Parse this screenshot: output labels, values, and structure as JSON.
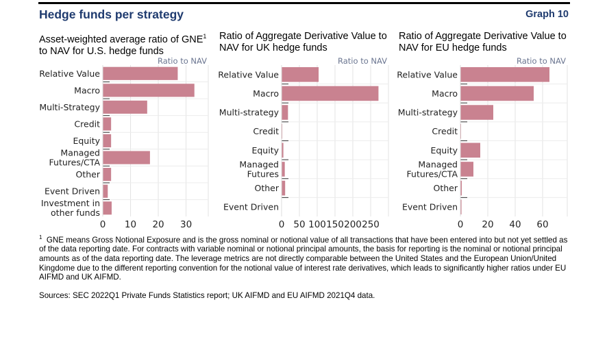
{
  "header": {
    "title": "Hedge funds per strategy",
    "graph_label": "Graph 10"
  },
  "chart_data": [
    {
      "type": "bar",
      "orientation": "horizontal",
      "title_parts": [
        "Asset-weighted average ratio of GNE",
        "1",
        " to NAV for U.S. hedge funds"
      ],
      "unit_label": "Ratio to NAV",
      "categories": [
        "Relative Value",
        "Macro",
        "Multi-Strategy",
        "Credit",
        "Equity",
        "Managed Futures/CTA",
        "Other",
        "Event Driven",
        "Investment in other funds"
      ],
      "category_lines": [
        [
          "Relative Value"
        ],
        [
          "Macro"
        ],
        [
          "Multi-Strategy"
        ],
        [
          "Credit"
        ],
        [
          "Equity"
        ],
        [
          "Managed",
          "Futures/CTA"
        ],
        [
          "Other"
        ],
        [
          "Event Driven"
        ],
        [
          "Investment in",
          "other funds"
        ]
      ],
      "values": [
        27,
        33,
        16,
        3,
        3,
        17,
        3,
        1.8,
        3.2
      ],
      "xlim": [
        0,
        38
      ],
      "xticks": [
        0,
        10,
        20,
        30
      ],
      "grid": true,
      "color": "#c98290"
    },
    {
      "type": "bar",
      "orientation": "horizontal",
      "title_parts": [
        "Ratio of Aggregate Derivative Value to NAV for UK hedge funds"
      ],
      "unit_label": "Ratio to NAV",
      "categories": [
        "Relative Value",
        "Macro",
        "Multi-strategy",
        "Credit",
        "Equity",
        "Managed Futures",
        "Other",
        "Event Driven"
      ],
      "category_lines": [
        [
          "Relative Value"
        ],
        [
          "Macro"
        ],
        [
          "Multi-strategy"
        ],
        [
          "Credit"
        ],
        [
          "Equity"
        ],
        [
          "Managed",
          "Futures"
        ],
        [
          "Other"
        ],
        [
          "Event Driven"
        ]
      ],
      "values": [
        104,
        272,
        18,
        2,
        5,
        9,
        10,
        0
      ],
      "xlim": [
        0,
        300
      ],
      "xticks": [
        0,
        50,
        100,
        150,
        200,
        250
      ],
      "grid": true,
      "color": "#c98290"
    },
    {
      "type": "bar",
      "orientation": "horizontal",
      "title_parts": [
        "Ratio of Aggregate Derivative Value to NAV for EU hedge funds"
      ],
      "unit_label": "Ratio to NAV",
      "categories": [
        "Relative Value",
        "Macro",
        "Multi-strategy",
        "Credit",
        "Equity",
        "Managed Futures/CTA",
        "Other",
        "Event Driven"
      ],
      "category_lines": [
        [
          "Relative Value"
        ],
        [
          "Macro"
        ],
        [
          "Multi-strategy"
        ],
        [
          "Credit"
        ],
        [
          "Equity"
        ],
        [
          "Managed",
          "Futures/CTA"
        ],
        [
          "Other"
        ],
        [
          "Event Driven"
        ]
      ],
      "values": [
        65,
        53.5,
        24,
        0.5,
        14.5,
        9.5,
        1,
        0.8
      ],
      "xlim": [
        0,
        78
      ],
      "xticks": [
        0,
        20,
        40,
        60
      ],
      "grid": true,
      "color": "#c98290"
    }
  ],
  "footnote": {
    "marker": "1",
    "text": "GNE means Gross Notional Exposure and is the gross nominal or notional value of all transactions that have been entered into but not yet settled as of the data reporting date. For contracts with variable nominal or notional principal amounts, the basis for reporting is the nominal or notional principal amounts as of the data reporting date. The leverage metrics are not directly comparable between the United States and the European Union/United Kingdome due to the different reporting convention for the notional value of interest rate derivatives, which leads to significantly higher ratios under EU AIFMD and UK AIFMD."
  },
  "sources": "Sources: SEC 2022Q1 Private Funds Statistics report; UK AIFMD and EU AIFMD 2021Q4 data."
}
